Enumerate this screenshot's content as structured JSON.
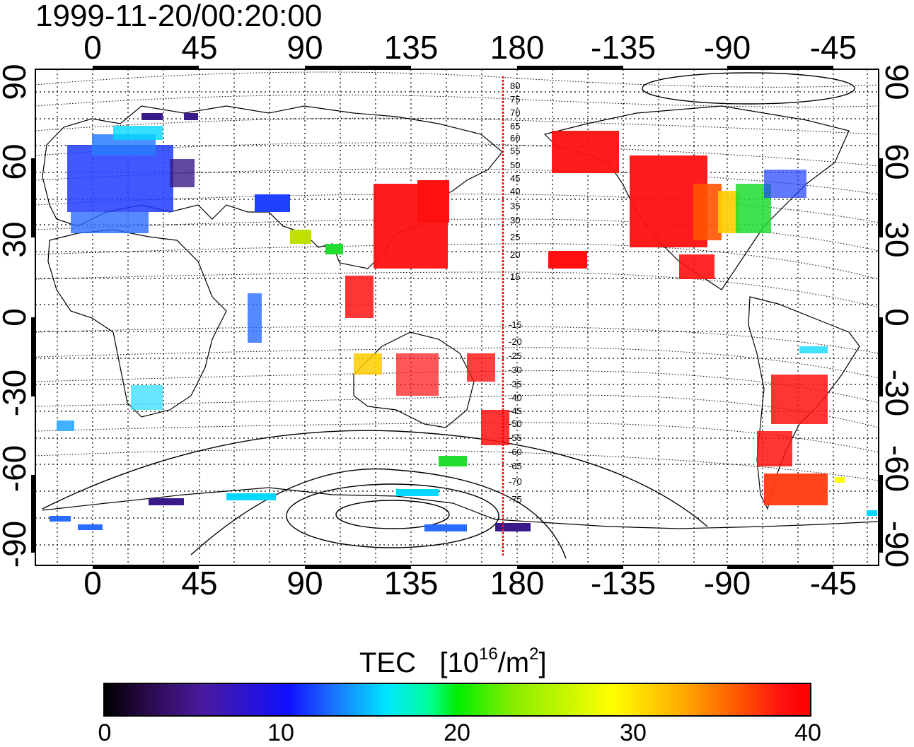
{
  "title": "1999-11-20/00:20:00",
  "map": {
    "lon_ticks": [
      "0",
      "45",
      "90",
      "135",
      "180",
      "-135",
      "-90",
      "-45"
    ],
    "lat_ticks": [
      "90",
      "60",
      "30",
      "0",
      "-30",
      "-60",
      "-90"
    ],
    "contour_labels_north": [
      "80",
      "75",
      "70",
      "65",
      "60",
      "55",
      "50",
      "45",
      "40",
      "35",
      "30",
      "25",
      "20",
      "15"
    ],
    "contour_labels_south": [
      "-15",
      "-20",
      "-25",
      "-30",
      "-35",
      "-40",
      "-45",
      "-50",
      "-55",
      "-60",
      "-65",
      "-70",
      "-75"
    ],
    "reference_line_lon": 175,
    "reference_line_color": "#ff0000"
  },
  "colorbar": {
    "title_main": "TEC",
    "title_unit_prefix": "[10",
    "title_unit_exp": "16",
    "title_unit_mid": "/m",
    "title_unit_exp2": "2",
    "title_unit_suffix": "]",
    "min": 0,
    "max": 40,
    "ticks": [
      "0",
      "10",
      "20",
      "30",
      "40"
    ],
    "colors": [
      "#000000",
      "#4a1aa0",
      "#1010ff",
      "#00e6ff",
      "#00ee00",
      "#ffff00",
      "#ff5500",
      "#ff0000"
    ]
  }
}
